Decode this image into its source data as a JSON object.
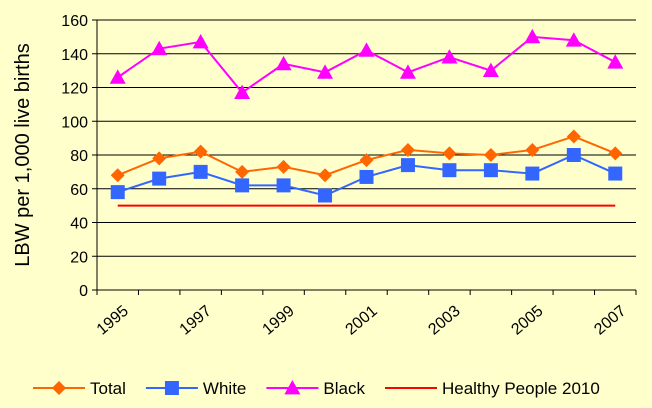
{
  "chart_data": {
    "type": "line",
    "title": "",
    "xlabel": "",
    "ylabel": "LBW per 1,000 live births",
    "ylim": [
      0,
      160
    ],
    "yticks": [
      0,
      20,
      40,
      60,
      80,
      100,
      120,
      140,
      160
    ],
    "x_tick_labels": [
      "1995",
      "1997",
      "1999",
      "2001",
      "2003",
      "2005",
      "2007"
    ],
    "x": [
      1995,
      1996,
      1997,
      1998,
      1999,
      2000,
      2001,
      2002,
      2003,
      2004,
      2005,
      2006,
      2007
    ],
    "grid": "horizontal",
    "legend_position": "bottom",
    "series": [
      {
        "name": "Total",
        "color": "#FF6600",
        "marker": "diamond",
        "values": [
          68,
          78,
          82,
          70,
          73,
          68,
          77,
          83,
          81,
          80,
          83,
          91,
          81
        ]
      },
      {
        "name": "White",
        "color": "#3366FF",
        "marker": "square",
        "values": [
          58,
          66,
          70,
          62,
          62,
          56,
          67,
          74,
          71,
          71,
          69,
          80,
          69
        ]
      },
      {
        "name": "Black",
        "color": "#FF00FF",
        "marker": "triangle",
        "values": [
          126,
          143,
          147,
          117,
          134,
          129,
          142,
          129,
          138,
          130,
          150,
          148,
          135
        ]
      },
      {
        "name": "Healthy People 2010",
        "color": "#FF0000",
        "marker": "none",
        "values": [
          50,
          50,
          50,
          50,
          50,
          50,
          50,
          50,
          50,
          50,
          50,
          50,
          50
        ]
      }
    ]
  }
}
